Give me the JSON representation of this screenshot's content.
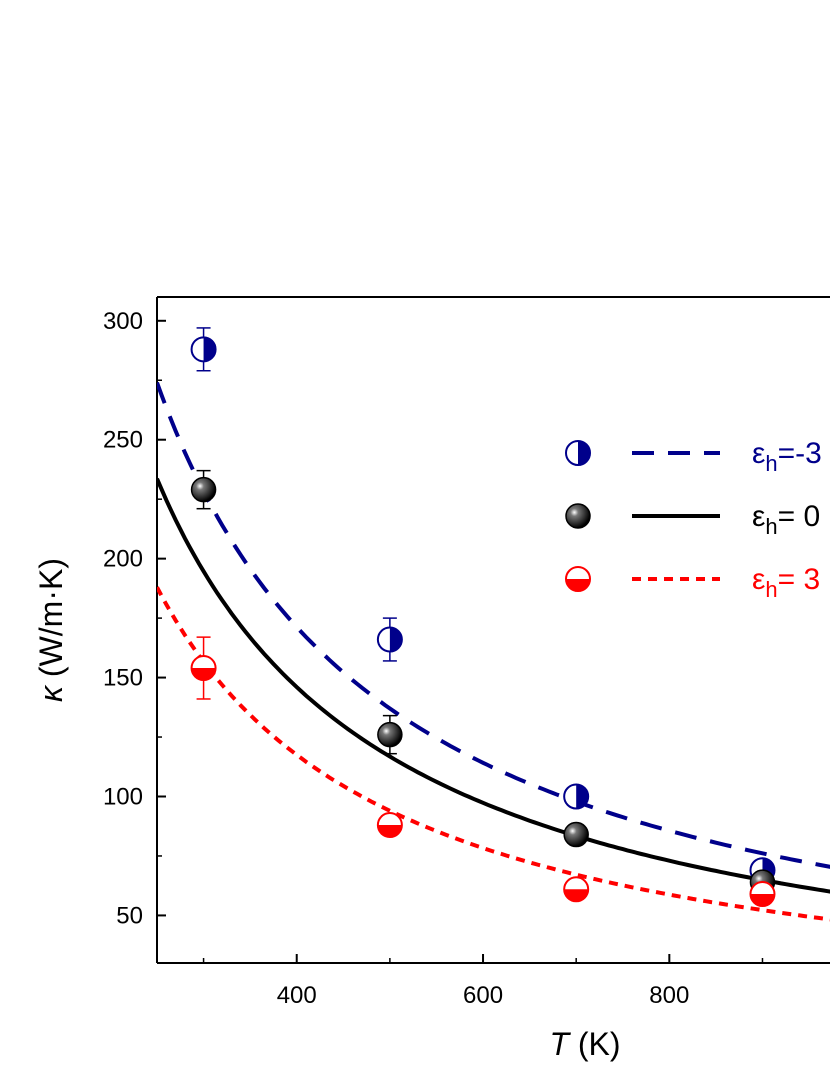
{
  "chart_data": {
    "type": "scatter",
    "title": "",
    "xlabel": "T",
    "xlabel_unit": " (K)",
    "ylabel": "κ",
    "ylabel_unit": " (W/m·K)",
    "xlim": [
      250,
      980
    ],
    "ylim": [
      30,
      310
    ],
    "xticks": [
      400,
      600,
      800
    ],
    "yticks": [
      50,
      100,
      150,
      200,
      250,
      300
    ],
    "legend_position": "right",
    "series": [
      {
        "name": "ε_h=-3",
        "legend_label": "=-3",
        "color": "#00008B",
        "marker": "half-left-filled-circle",
        "line_style": "dashed",
        "fit": {
          "a": 68500,
          "b": 1.0
        },
        "points": [
          {
            "x": 300,
            "y": 288,
            "err": 9
          },
          {
            "x": 500,
            "y": 166,
            "err": 9
          },
          {
            "x": 700,
            "y": 100,
            "err": 0
          },
          {
            "x": 900,
            "y": 69,
            "err": 0
          }
        ]
      },
      {
        "name": "ε_h=0",
        "legend_label": "= 0",
        "color": "#000000",
        "marker": "solid-sphere",
        "line_style": "solid",
        "fit": {
          "a": 58400,
          "b": 1.0
        },
        "points": [
          {
            "x": 300,
            "y": 229,
            "err": 8
          },
          {
            "x": 500,
            "y": 126,
            "err": 8
          },
          {
            "x": 700,
            "y": 84,
            "err": 0
          },
          {
            "x": 900,
            "y": 64,
            "err": 0
          }
        ]
      },
      {
        "name": "ε_h=3",
        "legend_label": "= 3",
        "color": "#FF0000",
        "marker": "half-bottom-filled-circle",
        "line_style": "dotted",
        "fit": {
          "a": 47000,
          "b": 1.0
        },
        "points": [
          {
            "x": 300,
            "y": 154,
            "err": 13
          },
          {
            "x": 500,
            "y": 88,
            "err": 4
          },
          {
            "x": 700,
            "y": 61,
            "err": 0
          },
          {
            "x": 900,
            "y": 59,
            "err": 3
          }
        ]
      }
    ]
  },
  "legend": {
    "symbol": "ε",
    "subscript": "h"
  }
}
